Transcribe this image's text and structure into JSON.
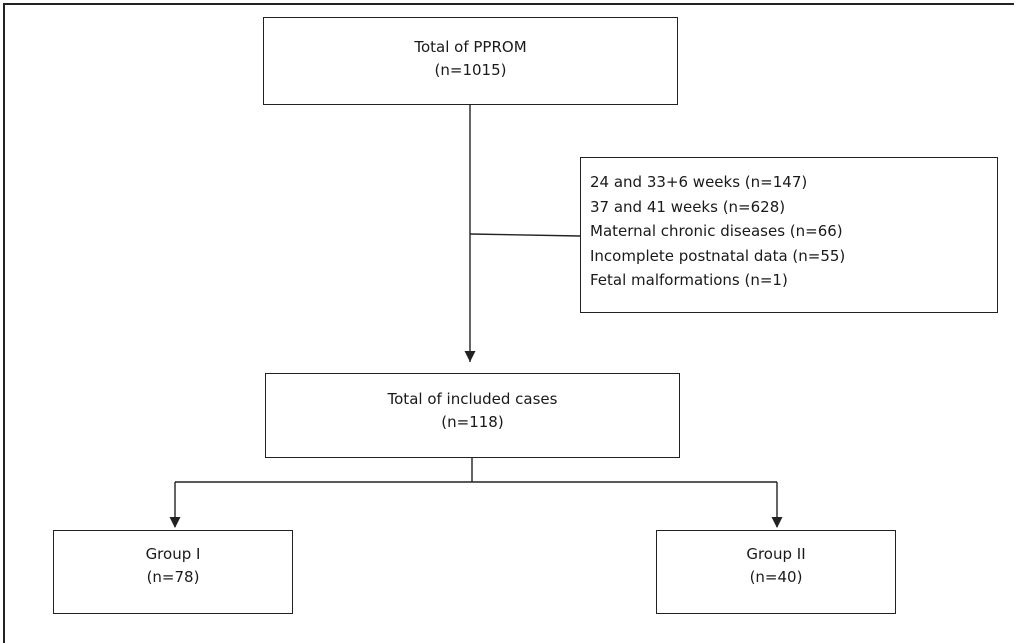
{
  "total_box": {
    "title": "Total of PPROM",
    "count": "(n=1015)"
  },
  "exclusions": {
    "items": [
      "24 and 33+6 weeks (n=147)",
      "37 and 41 weeks (n=628)",
      "Maternal chronic diseases (n=66)",
      "Incomplete postnatal data (n=55)",
      "Fetal malformations (n=1)"
    ]
  },
  "included_box": {
    "title": "Total of included cases",
    "count": "(n=118)"
  },
  "group1": {
    "title": "Group I",
    "count": "(n=78)"
  },
  "group2": {
    "title": "Group II",
    "count": "(n=40)"
  }
}
